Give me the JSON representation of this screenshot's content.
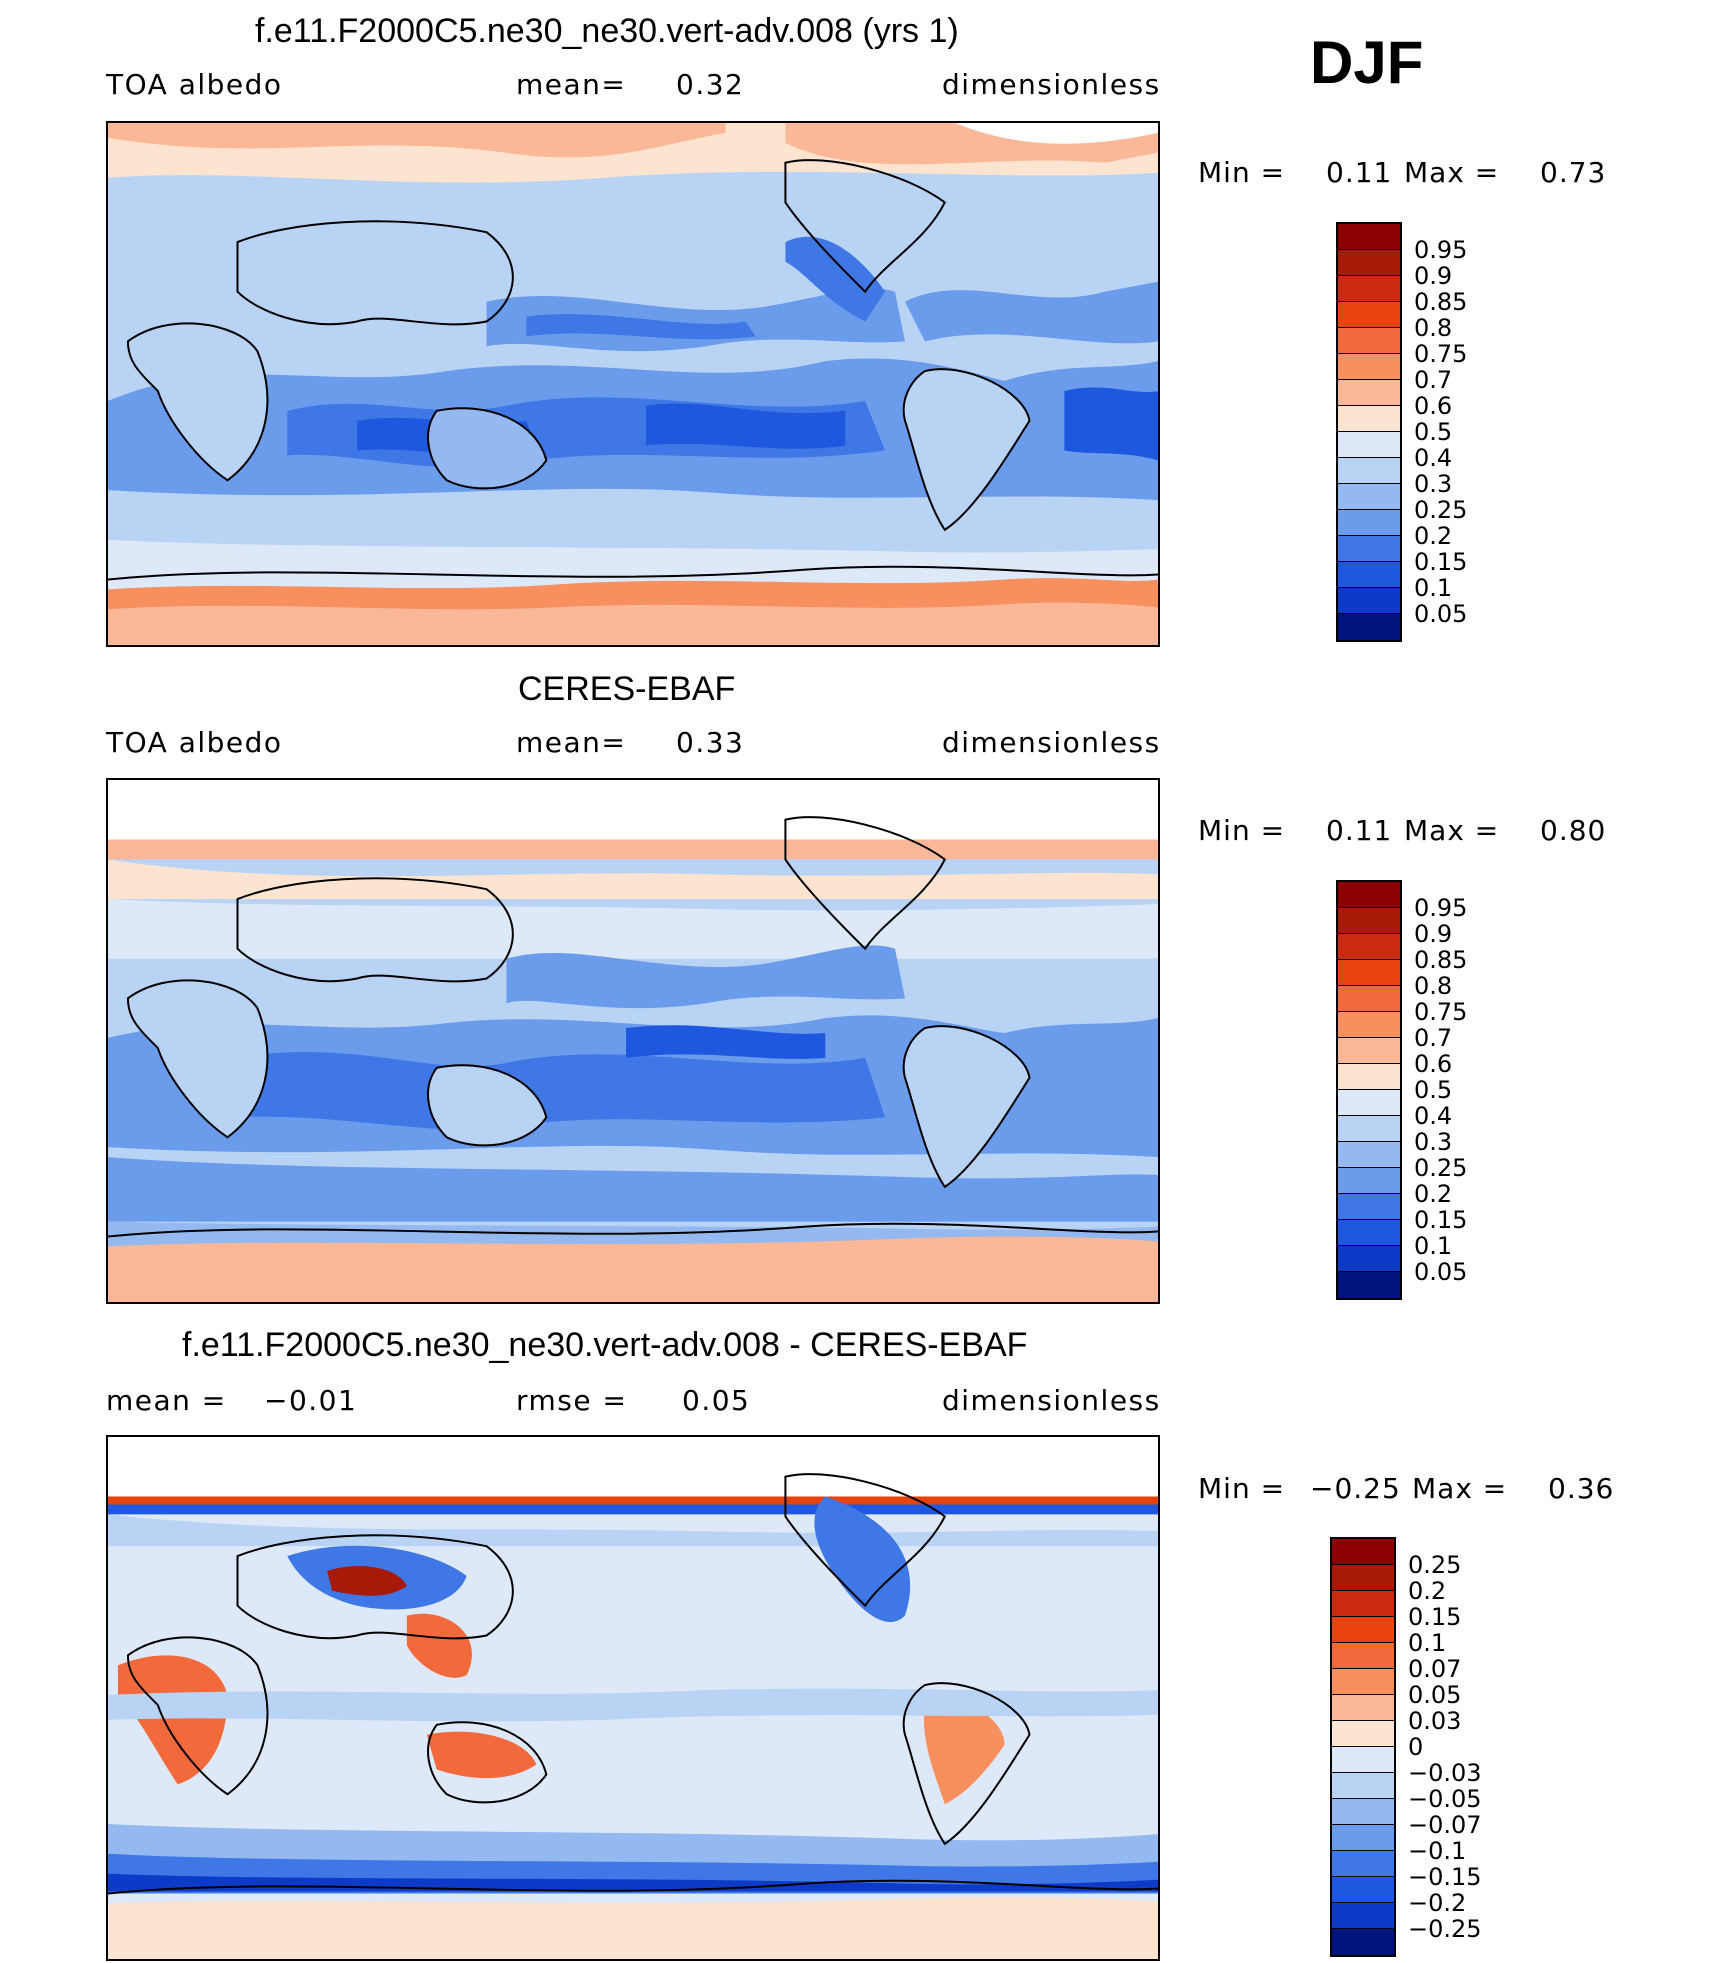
{
  "season": "DJF",
  "panels": [
    {
      "title": "f.e11.F2000C5.ne30_ne30.vert-adv.008 (yrs 1)",
      "left_label": "TOA albedo",
      "center_label": "mean=",
      "center_value": "0.32",
      "right_label": "dimensionless",
      "min_label": "Min =",
      "min_value": "0.11",
      "max_label": "Max =",
      "max_value": "0.73",
      "colorbar": {
        "labels": [
          "0.95",
          "0.9",
          "0.85",
          "0.8",
          "0.75",
          "0.7",
          "0.6",
          "0.5",
          "0.4",
          "0.3",
          "0.25",
          "0.2",
          "0.15",
          "0.1",
          "0.05"
        ],
        "colors": [
          "#8b0000",
          "#a81a08",
          "#cc2a10",
          "#e8420e",
          "#f26a3c",
          "#f7905e",
          "#fab898",
          "#fde4d0",
          "#dde9f8",
          "#b9d3f5",
          "#94b9f0",
          "#6a9ceb",
          "#3f78e6",
          "#1e58df",
          "#0d3bc7",
          "#00137f"
        ]
      }
    },
    {
      "title": "CERES-EBAF",
      "left_label": "TOA albedo",
      "center_label": "mean=",
      "center_value": "0.33",
      "right_label": "dimensionless",
      "min_label": "Min =",
      "min_value": "0.11",
      "max_label": "Max =",
      "max_value": "0.80",
      "colorbar": {
        "labels": [
          "0.95",
          "0.9",
          "0.85",
          "0.8",
          "0.75",
          "0.7",
          "0.6",
          "0.5",
          "0.4",
          "0.3",
          "0.25",
          "0.2",
          "0.15",
          "0.1",
          "0.05"
        ],
        "colors": [
          "#8b0000",
          "#a81a08",
          "#cc2a10",
          "#e8420e",
          "#f26a3c",
          "#f7905e",
          "#fab898",
          "#fde4d0",
          "#dde9f8",
          "#b9d3f5",
          "#94b9f0",
          "#6a9ceb",
          "#3f78e6",
          "#1e58df",
          "#0d3bc7",
          "#00137f"
        ]
      }
    },
    {
      "title": "f.e11.F2000C5.ne30_ne30.vert-adv.008 - CERES-EBAF",
      "left_label": "mean =",
      "left_value": "−0.01",
      "center_label": "rmse =",
      "center_value": "0.05",
      "right_label": "dimensionless",
      "min_label": "Min =",
      "min_value": "−0.25",
      "max_label": "Max =",
      "max_value": "0.36",
      "colorbar": {
        "labels": [
          "0.25",
          "0.2",
          "0.15",
          "0.1",
          "0.07",
          "0.05",
          "0.03",
          "0",
          "−0.03",
          "−0.05",
          "−0.07",
          "−0.1",
          "−0.15",
          "−0.2",
          "−0.25"
        ],
        "colors": [
          "#8b0000",
          "#a81a08",
          "#cc2a10",
          "#e8420e",
          "#f26a3c",
          "#f7905e",
          "#fab898",
          "#fde4d0",
          "#dde9f8",
          "#b9d3f5",
          "#94b9f0",
          "#6a9ceb",
          "#3f78e6",
          "#1e58df",
          "#0d3bc7",
          "#00137f"
        ]
      }
    }
  ]
}
